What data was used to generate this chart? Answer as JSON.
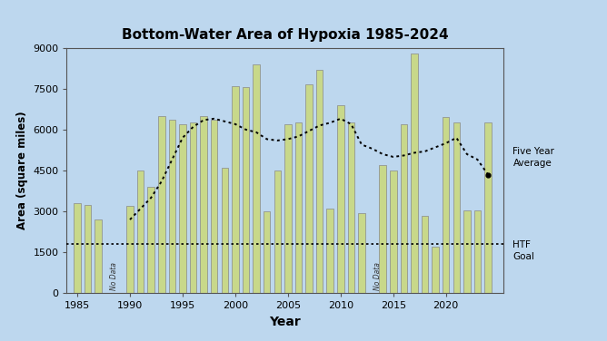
{
  "title": "Bottom-Water Area of Hypoxia 1985-2024",
  "xlabel": "Year",
  "ylabel": "Area (square miles)",
  "background_color": "#BDD7EE",
  "bar_color": "#C8D88A",
  "bar_edge_color": "#888888",
  "htf_goal": 1800,
  "years": [
    1985,
    1986,
    1987,
    1988,
    1989,
    1990,
    1991,
    1992,
    1993,
    1994,
    1995,
    1996,
    1997,
    1998,
    1999,
    2000,
    2001,
    2002,
    2003,
    2004,
    2005,
    2006,
    2007,
    2008,
    2009,
    2010,
    2011,
    2012,
    2013,
    2014,
    2015,
    2016,
    2017,
    2018,
    2019,
    2020,
    2021,
    2022,
    2023,
    2024
  ],
  "values": [
    3300,
    3250,
    2700,
    null,
    null,
    3200,
    4500,
    3900,
    6500,
    6350,
    6200,
    6250,
    6500,
    6350,
    4600,
    7600,
    7550,
    8400,
    3000,
    4500,
    6200,
    6250,
    7650,
    8200,
    3100,
    6900,
    6250,
    2950,
    null,
    4700,
    4500,
    6200,
    8800,
    2850,
    1700,
    6450,
    6250,
    3050,
    3050,
    6250
  ],
  "no_data_pos": [
    {
      "x": 1988.5,
      "label": "No Data"
    },
    {
      "x": 2013.5,
      "label": "No Data"
    }
  ],
  "five_year_avg_x": [
    1990,
    1991,
    1992,
    1993,
    1994,
    1995,
    1996,
    1997,
    1998,
    1999,
    2000,
    2001,
    2002,
    2003,
    2004,
    2005,
    2006,
    2007,
    2008,
    2009,
    2010,
    2011,
    2012,
    2013,
    2014,
    2015,
    2016,
    2017,
    2018,
    2019,
    2020,
    2021,
    2022,
    2023,
    2024
  ],
  "five_year_avg_y": [
    2700,
    3100,
    3500,
    4100,
    4900,
    5700,
    6100,
    6350,
    6400,
    6300,
    6200,
    6000,
    5900,
    5650,
    5600,
    5650,
    5750,
    5950,
    6150,
    6250,
    6400,
    6200,
    5450,
    5300,
    5100,
    5000,
    5050,
    5150,
    5200,
    5350,
    5500,
    5700,
    5100,
    4900,
    4350
  ],
  "legend_avg_label": "Five Year\nAverage",
  "legend_htf_label": "HTF\nGoal",
  "ylim": [
    0,
    9000
  ],
  "yticks": [
    0,
    1500,
    3000,
    4500,
    6000,
    7500,
    9000
  ],
  "xticks": [
    1985,
    1990,
    1995,
    2000,
    2005,
    2010,
    2015,
    2020
  ],
  "xlim_left": 1984.0,
  "xlim_right": 2025.5
}
